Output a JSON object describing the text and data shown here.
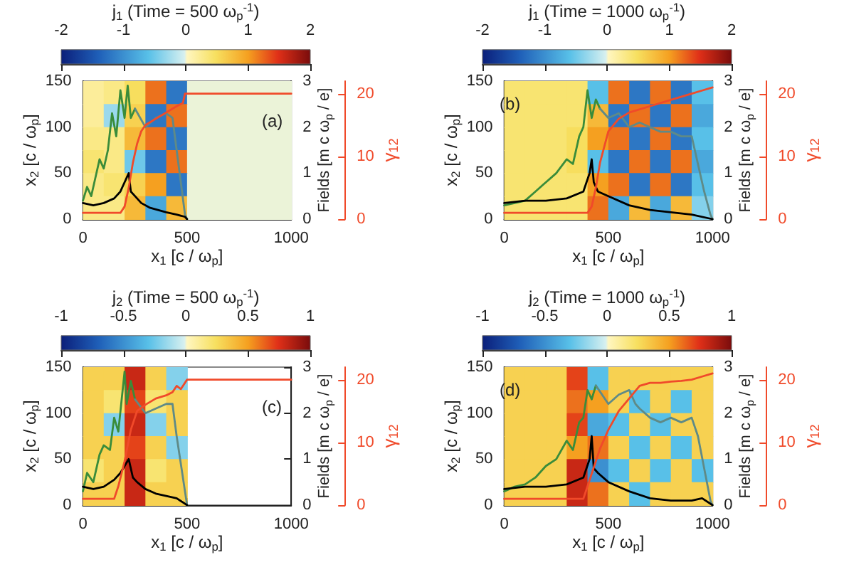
{
  "chart_data": [
    {
      "type": "heatmap",
      "clabel": "j$_{1}$ (Time = 500 ω$_{p}$$^{-1}$)",
      "clim": [
        -2,
        2
      ],
      "cticks": [
        -2,
        -1,
        0,
        1,
        2
      ],
      "cells": [
        [
          0.2,
          0.3,
          0.5,
          1.2,
          -1.2,
          0,
          0,
          0,
          0,
          0
        ],
        [
          0.2,
          -0.3,
          0.6,
          -1.2,
          1.2,
          0,
          0,
          0,
          0,
          0
        ],
        [
          0.3,
          0.3,
          0.8,
          1.2,
          -1.2,
          0,
          0,
          0,
          0,
          0
        ],
        [
          0.4,
          0.3,
          -0.5,
          -1.2,
          1.2,
          0,
          0,
          0,
          0,
          0
        ],
        [
          0.3,
          0.4,
          0.6,
          1,
          -1.2,
          0,
          0,
          0,
          0,
          0
        ],
        [
          0.3,
          0.3,
          0.8,
          -0.8,
          0.8,
          0,
          0,
          0,
          0,
          0
        ]
      ],
      "xlabel": "x$_{1}$ [c / ω$_{p}$]",
      "ylabel": "x$_{2}$ [c / ω$_{p}$]",
      "y2label": "Fields [m c ω$_{p}$ / e]",
      "y3label": "γ$_{12}$",
      "xlim": [
        0,
        1000
      ],
      "xticks": [
        0,
        500,
        1000
      ],
      "ylim": [
        0,
        150
      ],
      "yticks": [
        0,
        50,
        100,
        150
      ],
      "y2lim": [
        0,
        3
      ],
      "y2ticks": [
        0,
        1,
        2,
        3
      ],
      "y3lim": [
        0,
        22
      ],
      "y3ticks": [
        0,
        10,
        20
      ],
      "annotations": [
        "(a)"
      ],
      "series": [
        {
          "type": "line",
          "color": "#3a8c3a",
          "axis": "y2",
          "x": [
            0,
            20,
            40,
            60,
            80,
            100,
            120,
            140,
            160,
            180,
            200,
            215,
            230,
            250
          ],
          "values": [
            0.4,
            0.7,
            0.5,
            0.9,
            1.3,
            1.1,
            1.5,
            2.3,
            1.8,
            2.8,
            2.2,
            2.9,
            2.2,
            2.4
          ]
        },
        {
          "type": "line",
          "color": "#5f8a87",
          "axis": "y2",
          "x": [
            250,
            300,
            350,
            400,
            430,
            450,
            470,
            490,
            500
          ],
          "values": [
            2.4,
            2,
            2.2,
            2.3,
            2.2,
            1.5,
            0.8,
            0.1,
            0
          ]
        },
        {
          "type": "line",
          "color": "#000000",
          "axis": "y2",
          "x": [
            0,
            50,
            100,
            150,
            180,
            200,
            220,
            230,
            250,
            280,
            320,
            360,
            400,
            450,
            490,
            500
          ],
          "values": [
            0.35,
            0.3,
            0.35,
            0.45,
            0.6,
            0.8,
            1,
            0.6,
            0.5,
            0.35,
            0.25,
            0.2,
            0.15,
            0.1,
            0.05,
            0
          ]
        },
        {
          "type": "line",
          "color": "#f04a2a",
          "axis": "y3",
          "x": [
            0,
            180,
            200,
            220,
            240,
            260,
            280,
            300,
            350,
            400,
            450,
            480,
            490,
            500,
            1000
          ],
          "values": [
            1,
            1,
            2,
            5,
            9,
            12,
            14,
            15,
            16,
            17,
            18,
            18.5,
            20,
            20,
            20
          ]
        }
      ]
    },
    {
      "type": "heatmap",
      "clabel": "j$_{1}$ (Time = 1000 ω$_{p}$$^{-1}$)",
      "clim": [
        -2,
        2
      ],
      "cticks": [
        -2,
        -1,
        0,
        1,
        2
      ],
      "cells": [
        [
          0.4,
          0.4,
          0.4,
          0.4,
          -0.6,
          1.2,
          -1.2,
          1.2,
          -1.2,
          -0.6
        ],
        [
          0.4,
          0.4,
          0.4,
          0.4,
          0.8,
          -1.2,
          1.2,
          -1.2,
          1.2,
          -0.8
        ],
        [
          0.4,
          0.4,
          0.4,
          0.5,
          1,
          1.2,
          -1.2,
          1.2,
          -1.2,
          -0.6
        ],
        [
          0.4,
          0.4,
          0.4,
          0.5,
          -0.6,
          -1.2,
          1.2,
          -1.2,
          1.2,
          -0.8
        ],
        [
          0.4,
          0.4,
          0.4,
          0.4,
          1,
          1.2,
          -1.2,
          1.2,
          -1.2,
          -0.6
        ],
        [
          0.4,
          0.4,
          0.4,
          0.4,
          1.2,
          -0.8,
          0.8,
          -0.8,
          0.8,
          -0.4
        ]
      ],
      "xlabel": "x$_{1}$ [c / ω$_{p}$]",
      "ylabel": "x$_{2}$ [c / ω$_{p}$]",
      "y2label": "Fields [m c ω$_{p}$ / e]",
      "y3label": "γ$_{12}$",
      "xlim": [
        0,
        1000
      ],
      "xticks": [
        0,
        500,
        1000
      ],
      "ylim": [
        0,
        150
      ],
      "yticks": [
        0,
        50,
        100,
        150
      ],
      "y2lim": [
        0,
        3
      ],
      "y2ticks": [
        0,
        1,
        2,
        3
      ],
      "y3lim": [
        0,
        22
      ],
      "y3ticks": [
        0,
        10,
        20
      ],
      "annotations": [
        "(b)"
      ],
      "series": [
        {
          "type": "line",
          "color": "#3a8c3a",
          "axis": "y2",
          "x": [
            0,
            50,
            100,
            150,
            200,
            250,
            300,
            330,
            360,
            380,
            400,
            420,
            440,
            460
          ],
          "values": [
            0.3,
            0.35,
            0.4,
            0.6,
            0.8,
            1,
            1.3,
            1.2,
            1.8,
            2,
            2.8,
            2.2,
            2.6,
            2.4
          ]
        },
        {
          "type": "line",
          "color": "#5f8a87",
          "axis": "y2",
          "x": [
            460,
            500,
            550,
            600,
            650,
            700,
            750,
            800,
            850,
            900,
            930,
            960,
            990,
            1000
          ],
          "values": [
            2.4,
            2.2,
            2.3,
            2,
            2.1,
            2,
            1.9,
            1.9,
            1.8,
            1.8,
            1.2,
            0.6,
            0.1,
            0
          ]
        },
        {
          "type": "line",
          "color": "#000000",
          "axis": "y2",
          "x": [
            0,
            100,
            200,
            300,
            380,
            410,
            420,
            430,
            450,
            500,
            600,
            700,
            800,
            900,
            1000
          ],
          "values": [
            0.35,
            0.4,
            0.4,
            0.45,
            0.6,
            1,
            1.3,
            0.8,
            0.6,
            0.5,
            0.3,
            0.2,
            0.15,
            0.1,
            0
          ]
        },
        {
          "type": "line",
          "color": "#f04a2a",
          "axis": "y3",
          "x": [
            0,
            400,
            420,
            440,
            460,
            500,
            550,
            600,
            700,
            800,
            900,
            950,
            1000
          ],
          "values": [
            1,
            1,
            2,
            5,
            9,
            14,
            16,
            17,
            18,
            19,
            20,
            20.5,
            21
          ]
        }
      ]
    },
    {
      "type": "heatmap",
      "clabel": "j$_{2}$ (Time = 500 ω$_{p}$$^{-1}$)",
      "clim": [
        -1,
        1
      ],
      "cticks": [
        -1,
        -0.5,
        0,
        0.5,
        1
      ],
      "cells": [
        [
          0.3,
          0.3,
          0.8,
          0.3,
          -0.2,
          null,
          null,
          null,
          null,
          null
        ],
        [
          0.3,
          0.2,
          0.7,
          0.2,
          0.3,
          null,
          null,
          null,
          null,
          null
        ],
        [
          0.3,
          -0.2,
          0.8,
          -0.2,
          0.3,
          null,
          null,
          null,
          null,
          null
        ],
        [
          0.3,
          0.3,
          0.7,
          0.3,
          -0.2,
          null,
          null,
          null,
          null,
          null
        ],
        [
          0.2,
          0.3,
          0.8,
          0.2,
          0.3,
          null,
          null,
          null,
          null,
          null
        ],
        [
          0.3,
          0.3,
          0.8,
          0.3,
          0.3,
          null,
          null,
          null,
          null,
          null
        ]
      ],
      "xlabel": "x$_{1}$ [c / ω$_{p}$]",
      "ylabel": "x$_{2}$ [c / ω$_{p}$]",
      "y2label": "Fields [m c ω$_{p}$ / e]",
      "y3label": "γ$_{12}$",
      "xlim": [
        0,
        1000
      ],
      "xticks": [
        0,
        500,
        1000
      ],
      "ylim": [
        0,
        150
      ],
      "yticks": [
        0,
        50,
        100,
        150
      ],
      "y2lim": [
        0,
        3
      ],
      "y2ticks": [
        0,
        1,
        2,
        3
      ],
      "y3lim": [
        0,
        22
      ],
      "y3ticks": [
        0,
        10,
        20
      ],
      "annotations": [
        "(c)"
      ],
      "series": [
        {
          "type": "line",
          "color": "#3a8c3a",
          "axis": "y2",
          "x": [
            0,
            20,
            50,
            80,
            100,
            130,
            150,
            170,
            200,
            210,
            230,
            250
          ],
          "values": [
            0.3,
            0.7,
            0.5,
            1.1,
            1.3,
            1.2,
            1.9,
            1.6,
            2.9,
            2.2,
            2.7,
            2.3
          ]
        },
        {
          "type": "line",
          "color": "#5f8a87",
          "axis": "y2",
          "x": [
            250,
            300,
            350,
            400,
            430,
            450,
            470,
            490,
            500
          ],
          "values": [
            2.3,
            2,
            2.1,
            2.2,
            2.2,
            1.5,
            0.9,
            0.3,
            0
          ]
        },
        {
          "type": "line",
          "color": "#000000",
          "axis": "y2",
          "x": [
            0,
            50,
            100,
            150,
            180,
            200,
            220,
            240,
            260,
            300,
            350,
            400,
            450,
            500
          ],
          "values": [
            0.4,
            0.35,
            0.4,
            0.55,
            0.7,
            0.85,
            1,
            0.6,
            0.5,
            0.35,
            0.25,
            0.2,
            0.15,
            0
          ]
        },
        {
          "type": "line",
          "color": "#f04a2a",
          "axis": "y3",
          "x": [
            0,
            150,
            170,
            200,
            230,
            260,
            300,
            350,
            400,
            430,
            450,
            470,
            480,
            500,
            1000
          ],
          "values": [
            1,
            1,
            3,
            7,
            12,
            15,
            16,
            17,
            17.5,
            18,
            19,
            18.5,
            19,
            20,
            20
          ]
        }
      ]
    },
    {
      "type": "heatmap",
      "clabel": "j$_{2}$ (Time = 1000 ω$_{p}$$^{-1}$)",
      "clim": [
        -1,
        1
      ],
      "cticks": [
        -1,
        -0.5,
        0,
        0.5,
        1
      ],
      "cells": [
        [
          0.3,
          0.3,
          0.3,
          0.7,
          -0.3,
          0.3,
          0.3,
          0.3,
          0.3,
          0.3
        ],
        [
          0.3,
          0.3,
          0.3,
          0.6,
          0.5,
          0.3,
          -0.3,
          0.3,
          -0.3,
          0.3
        ],
        [
          0.3,
          0.3,
          0.3,
          0.7,
          -0.4,
          -0.3,
          0.3,
          -0.3,
          0.3,
          0.3
        ],
        [
          0.3,
          0.3,
          0.3,
          0.5,
          0.6,
          0.3,
          -0.3,
          0.3,
          -0.3,
          0.3
        ],
        [
          0.3,
          0.3,
          0.3,
          0.8,
          -0.5,
          -0.3,
          0.3,
          -0.3,
          0.3,
          -0.3
        ],
        [
          0.3,
          0.3,
          0.3,
          0.8,
          0.6,
          0.3,
          -0.3,
          0.3,
          0.3,
          0.3
        ]
      ],
      "xlabel": "x$_{1}$ [c / ω$_{p}$]",
      "ylabel": "x$_{2}$ [c / ω$_{p}$]",
      "y2label": "Fields [m c ω$_{p}$ / e]",
      "y3label": "γ$_{12}$",
      "xlim": [
        0,
        1000
      ],
      "xticks": [
        0,
        500,
        1000
      ],
      "ylim": [
        0,
        150
      ],
      "yticks": [
        0,
        50,
        100,
        150
      ],
      "y2lim": [
        0,
        3
      ],
      "y2ticks": [
        0,
        1,
        2,
        3
      ],
      "y3lim": [
        0,
        22
      ],
      "y3ticks": [
        0,
        10,
        20
      ],
      "annotations": [
        "(d)"
      ],
      "series": [
        {
          "type": "line",
          "color": "#3a8c3a",
          "axis": "y2",
          "x": [
            0,
            50,
            100,
            150,
            200,
            250,
            300,
            330,
            360,
            380,
            400,
            420,
            440
          ],
          "values": [
            0.3,
            0.4,
            0.45,
            0.6,
            0.85,
            1,
            1.4,
            1.2,
            1.8,
            1.9,
            2.5,
            2.3,
            2.6
          ]
        },
        {
          "type": "line",
          "color": "#5f8a87",
          "axis": "y2",
          "x": [
            440,
            500,
            550,
            600,
            630,
            650,
            700,
            750,
            800,
            850,
            900,
            930,
            960,
            990,
            1000
          ],
          "values": [
            2.6,
            2.2,
            2.4,
            2.5,
            2.2,
            2.1,
            1.9,
            1.8,
            1.9,
            1.8,
            1.9,
            1.5,
            0.8,
            0.1,
            0
          ]
        },
        {
          "type": "line",
          "color": "#000000",
          "axis": "y2",
          "x": [
            0,
            100,
            200,
            300,
            380,
            410,
            420,
            430,
            450,
            500,
            600,
            700,
            800,
            900,
            950,
            1000
          ],
          "values": [
            0.35,
            0.4,
            0.4,
            0.45,
            0.6,
            1,
            1.5,
            0.8,
            0.7,
            0.5,
            0.3,
            0.15,
            0.1,
            0.1,
            0.15,
            0
          ]
        },
        {
          "type": "line",
          "color": "#f04a2a",
          "axis": "y3",
          "x": [
            0,
            380,
            400,
            430,
            460,
            500,
            550,
            600,
            650,
            700,
            750,
            800,
            850,
            900,
            950,
            1000
          ],
          "values": [
            1,
            1,
            3,
            6,
            9,
            12,
            15,
            17,
            19,
            19.5,
            19.5,
            19.7,
            19.8,
            20,
            20.5,
            21
          ]
        }
      ]
    }
  ]
}
